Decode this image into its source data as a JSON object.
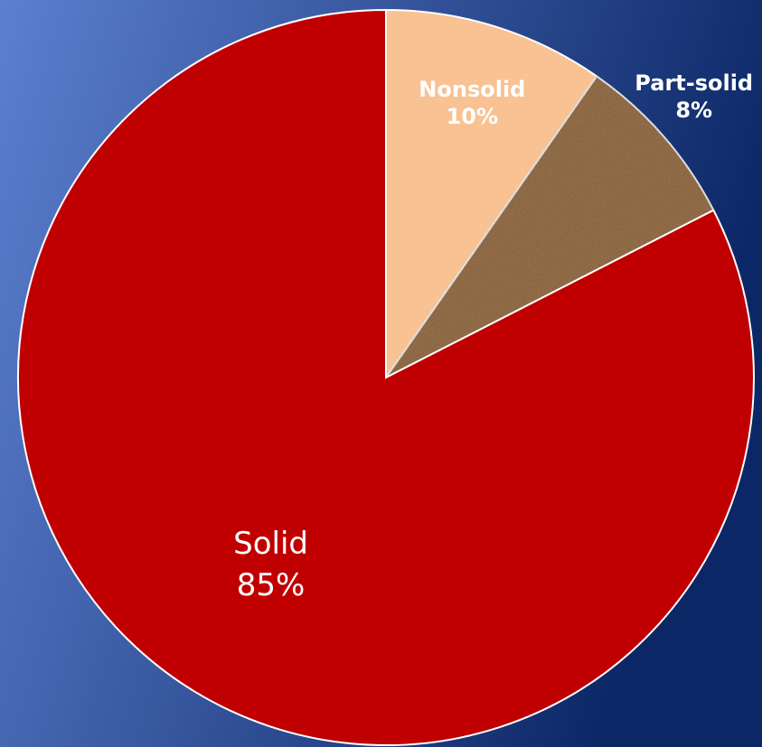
{
  "chart_data": {
    "type": "pie",
    "categories": [
      "Nonsolid",
      "Part-solid",
      "Solid"
    ],
    "values": [
      10,
      8,
      85
    ],
    "value_labels": [
      "10%",
      "8%",
      "85%"
    ],
    "colors": [
      "#f8c293",
      "#a57b52",
      "#c00000"
    ]
  }
}
